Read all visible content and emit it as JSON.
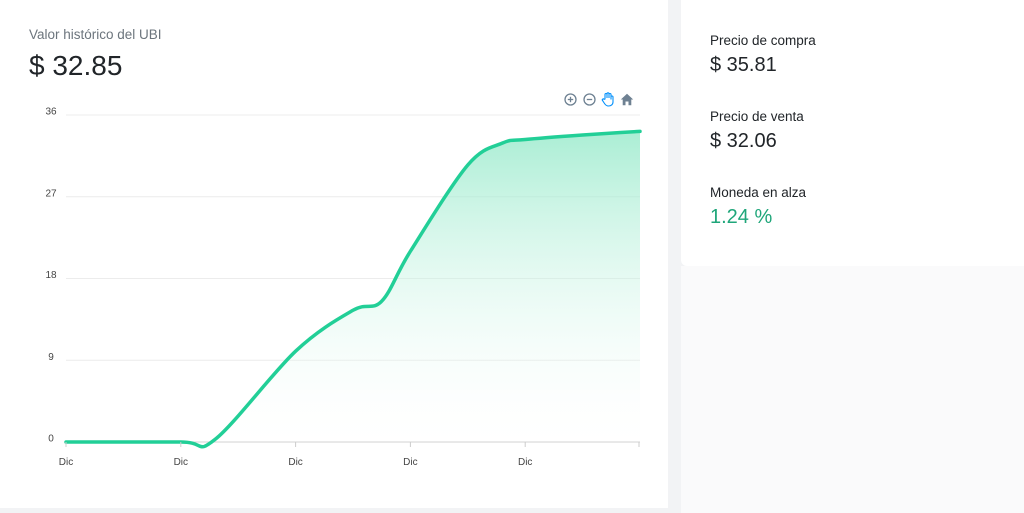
{
  "chart_card": {
    "title": "Valor histórico del UBI",
    "value": "$ 32.85"
  },
  "toolbar": {
    "icons": [
      "zoom-in-icon",
      "zoom-out-icon",
      "pan-hand-icon",
      "home-reset-icon"
    ]
  },
  "stats": [
    {
      "label": "Precio de compra",
      "value": "$ 35.81"
    },
    {
      "label": "Precio de venta",
      "value": "$ 32.06"
    },
    {
      "label": "Moneda en alza",
      "value": "1.24 %"
    }
  ],
  "colors": {
    "line": "#22cf97",
    "fill_top": "#8ee8c6",
    "positive": "#1fa67a"
  },
  "chart_data": {
    "type": "area",
    "x": [
      0,
      1,
      1.3,
      2,
      2.5,
      2.75,
      3,
      3.5,
      3.8,
      4,
      4.5,
      5
    ],
    "y": [
      0,
      0,
      0.3,
      10,
      14.5,
      15.5,
      21,
      30.5,
      32.9,
      33.3,
      33.8,
      34.2
    ],
    "xticks": [
      "Dic",
      "Dic",
      "Dic",
      "Dic",
      "Dic"
    ],
    "yticks": [
      0,
      9,
      18,
      27,
      36
    ],
    "ylim": [
      0,
      36
    ],
    "grid": true,
    "title": "",
    "xlabel": "",
    "ylabel": ""
  }
}
